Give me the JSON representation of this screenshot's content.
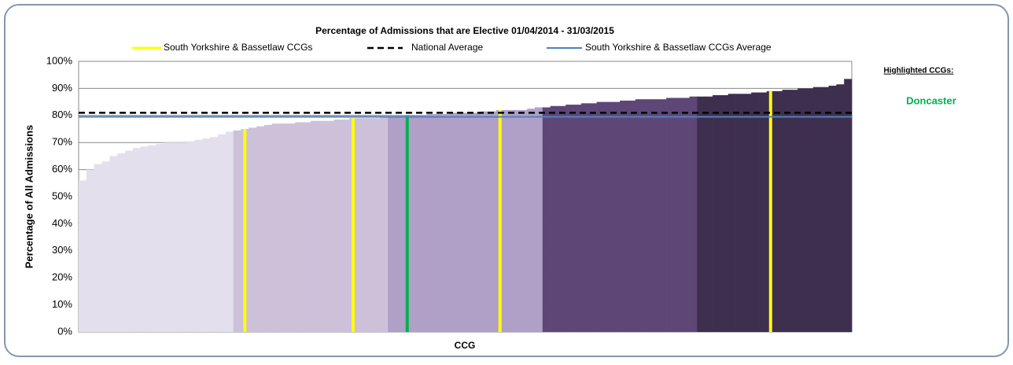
{
  "chart_data": {
    "type": "bar",
    "title": "Percentage of Admissions that are Elective 01/04/2014 - 31/03/2015",
    "y_label": "Percentage of All Admissions",
    "x_label": "CCG",
    "highlight_title": "Highlighted CCGs:",
    "ylim": [
      0,
      100
    ],
    "yticks": [
      {
        "value": 0,
        "label": "0%"
      },
      {
        "value": 10,
        "label": "10%"
      },
      {
        "value": 20,
        "label": "20%"
      },
      {
        "value": 30,
        "label": "30%"
      },
      {
        "value": 40,
        "label": "40%"
      },
      {
        "value": 50,
        "label": "50%"
      },
      {
        "value": 60,
        "label": "60%"
      },
      {
        "value": 70,
        "label": "70%"
      },
      {
        "value": 80,
        "label": "80%"
      },
      {
        "value": 90,
        "label": "90%"
      },
      {
        "value": 100,
        "label": "100%"
      }
    ],
    "grid": true,
    "band_colors": [
      "#e3dfec",
      "#cdc1da",
      "#b0a0c8",
      "#5e4677",
      "#3e2f4f"
    ],
    "categories": [
      null,
      null,
      null,
      null,
      null,
      null,
      null,
      null,
      null,
      null,
      null,
      null,
      null,
      null,
      null,
      null,
      null,
      null,
      null,
      null,
      null,
      null,
      null,
      null,
      null,
      null,
      null,
      null,
      null,
      null,
      null,
      null,
      null,
      null,
      null,
      null,
      null,
      null,
      null,
      null,
      null,
      null,
      null,
      null,
      null,
      null,
      null,
      null,
      null,
      null,
      null,
      null,
      null,
      null,
      null,
      null,
      null,
      null,
      null,
      null,
      null,
      null,
      null,
      null,
      null,
      null,
      null,
      null,
      null,
      null,
      null,
      null,
      null,
      null,
      null,
      null,
      null,
      null,
      null,
      null,
      null,
      null,
      null,
      null,
      null,
      null,
      null,
      null,
      null,
      null,
      null,
      null,
      null,
      null,
      null,
      null,
      null,
      null,
      null,
      null
    ],
    "values": [
      56,
      60,
      62,
      63,
      65,
      66,
      67,
      68,
      68.5,
      69,
      69.5,
      70,
      70,
      70,
      70.5,
      71,
      71.5,
      72,
      73,
      74,
      74.5,
      75,
      75.5,
      76,
      76.5,
      77,
      77,
      77,
      77.5,
      77.5,
      78,
      78,
      78,
      78.5,
      78.5,
      79,
      79,
      79,
      79,
      79.5,
      79.5,
      80,
      80,
      80,
      80,
      80.5,
      80.5,
      80.5,
      81,
      81,
      81,
      81,
      81.5,
      81.5,
      82,
      82,
      82,
      82,
      82.5,
      83,
      83,
      83.5,
      83.5,
      84,
      84,
      84.5,
      84.5,
      85,
      85,
      85,
      85.5,
      85.5,
      86,
      86,
      86,
      86,
      86.5,
      86.5,
      86.5,
      87,
      87,
      87,
      87.5,
      87.5,
      88,
      88,
      88,
      88.5,
      88.5,
      89,
      89,
      89.5,
      89.5,
      90,
      90,
      90.5,
      90.5,
      91,
      91.5,
      93.5
    ],
    "series": [
      {
        "name": "South Yorkshire & Bassetlaw CCGs",
        "color": "#ffff00",
        "values": [
          null,
          null,
          null,
          null,
          null,
          null,
          null,
          null,
          null,
          null,
          null,
          null,
          null,
          null,
          null,
          null,
          null,
          null,
          null,
          null,
          null,
          75,
          null,
          null,
          null,
          null,
          null,
          null,
          null,
          null,
          null,
          null,
          null,
          null,
          null,
          79,
          null,
          null,
          null,
          null,
          null,
          null,
          null,
          null,
          null,
          null,
          null,
          null,
          null,
          null,
          null,
          null,
          null,
          null,
          82,
          null,
          null,
          null,
          null,
          null,
          null,
          null,
          null,
          null,
          null,
          null,
          null,
          null,
          null,
          null,
          null,
          null,
          null,
          null,
          null,
          null,
          null,
          null,
          null,
          null,
          null,
          null,
          null,
          null,
          null,
          null,
          null,
          null,
          null,
          89,
          null,
          null,
          null,
          null,
          null,
          null,
          null,
          null,
          null,
          null
        ]
      },
      {
        "name": "Doncaster",
        "color": "#00b050",
        "values": [
          null,
          null,
          null,
          null,
          null,
          null,
          null,
          null,
          null,
          null,
          null,
          null,
          null,
          null,
          null,
          null,
          null,
          null,
          null,
          null,
          null,
          null,
          null,
          null,
          null,
          null,
          null,
          null,
          null,
          null,
          null,
          null,
          null,
          null,
          null,
          null,
          null,
          null,
          null,
          null,
          null,
          null,
          80,
          null,
          null,
          null,
          null,
          null,
          null,
          null,
          null,
          null,
          null,
          null,
          null,
          null,
          null,
          null,
          null,
          null,
          null,
          null,
          null,
          null,
          null,
          null,
          null,
          null,
          null,
          null,
          null,
          null,
          null,
          null,
          null,
          null,
          null,
          null,
          null,
          null,
          null,
          null,
          null,
          null,
          null,
          null,
          null,
          null,
          null,
          null,
          null,
          null,
          null,
          null,
          null,
          null,
          null,
          null,
          null,
          null
        ]
      }
    ],
    "lines": [
      {
        "name": "National Average",
        "value": 81,
        "color": "#000000",
        "dashed": true
      },
      {
        "name": "South Yorkshire & Bassetlaw CCGs Average",
        "value": 79.5,
        "color": "#4f81bd",
        "dashed": false
      }
    ]
  }
}
